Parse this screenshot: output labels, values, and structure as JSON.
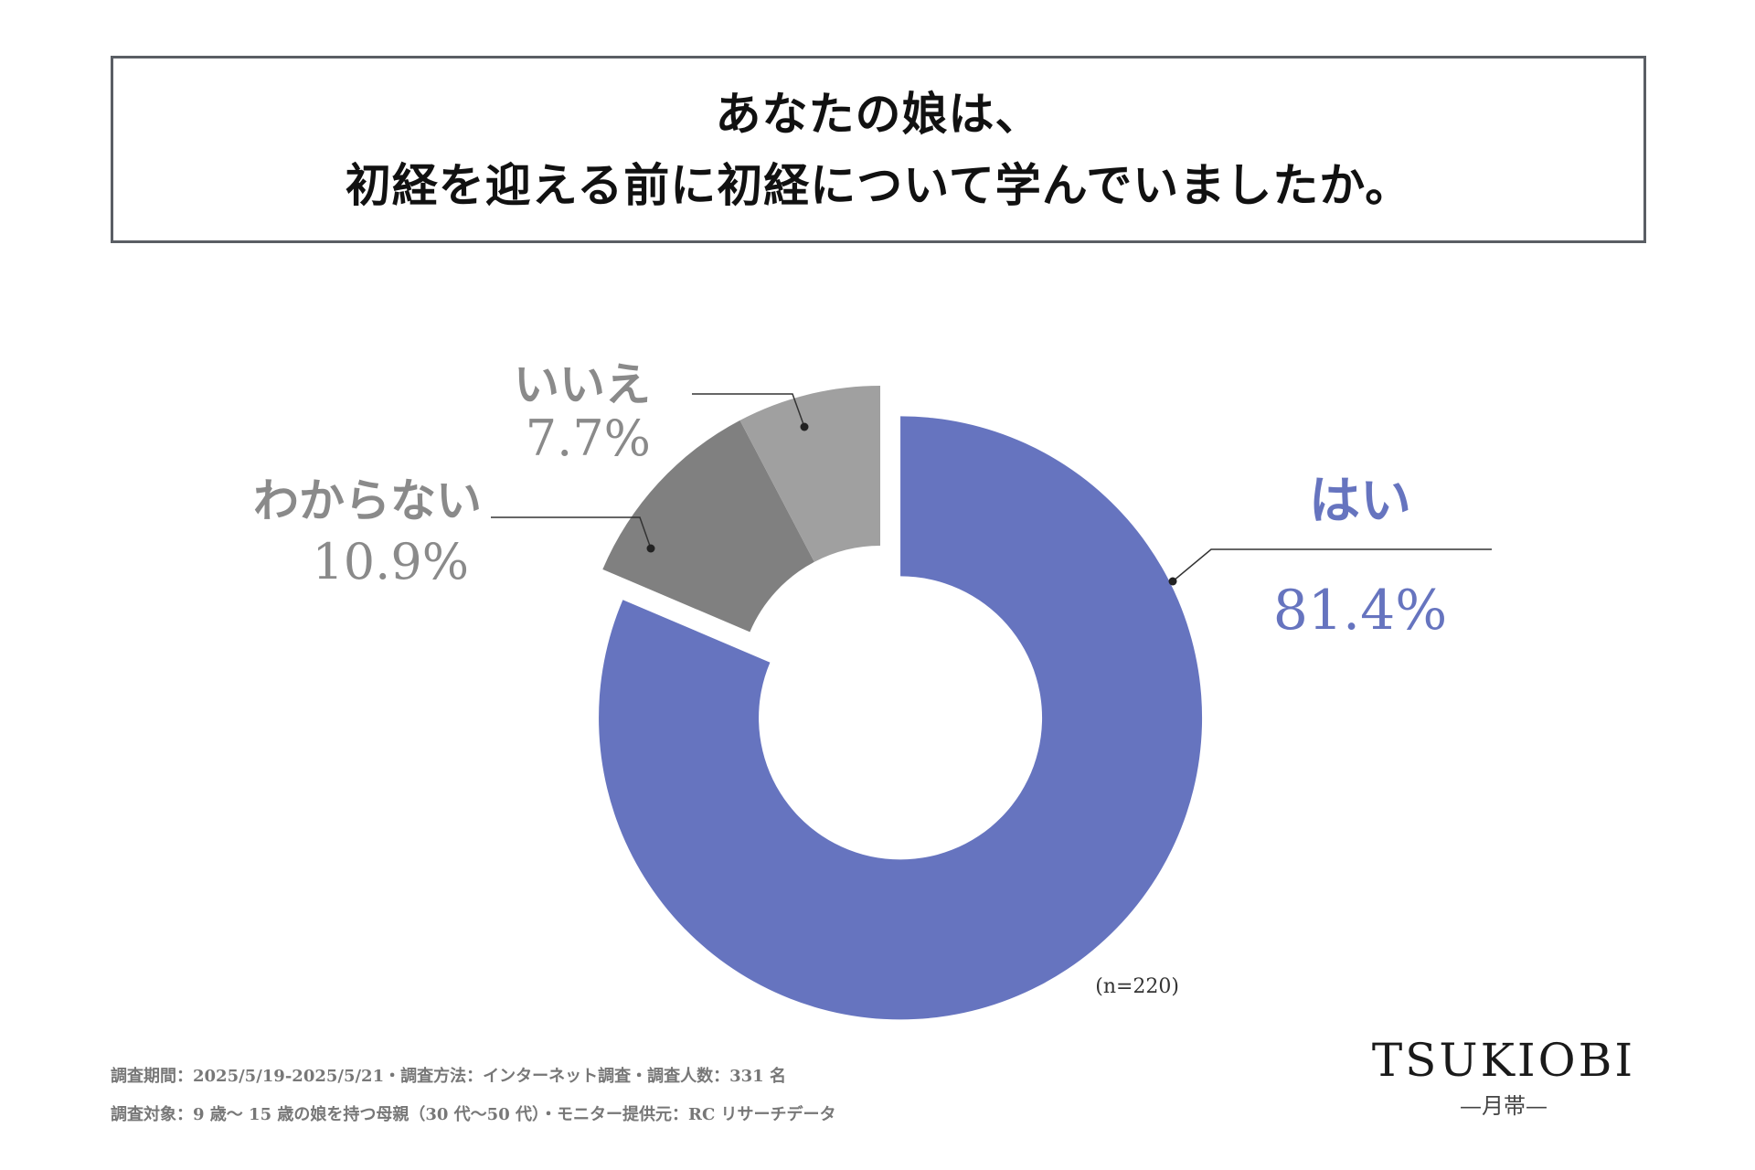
{
  "title": {
    "line1": "あなたの娘は、",
    "line2": "初経を迎える前に初経について学んでいましたか。"
  },
  "chart_data": {
    "type": "pie",
    "variant": "donut",
    "title": "あなたの娘は、初経を迎える前に初経について学んでいましたか。",
    "slices": [
      {
        "key": "yes",
        "label": "はい",
        "value": 81.4,
        "value_label": "81.4%",
        "color": "#6674bf"
      },
      {
        "key": "dontknow",
        "label": "わからない",
        "value": 10.9,
        "value_label": "10.9%",
        "color": "#808080"
      },
      {
        "key": "no",
        "label": "いいえ",
        "value": 7.7,
        "value_label": "7.7%",
        "color": "#a0a0a0"
      }
    ],
    "sample_note": "(n=220)",
    "label_colors": {
      "yes": "#6674bf",
      "other": "#8a8a8a"
    }
  },
  "footer": {
    "line1": "調査期間：2025/5/19-2025/5/21・調査方法：インターネット調査・調査人数：331 名",
    "line2": "調査対象：9 歳〜 15 歳の娘を持つ母親（30 代〜50 代）・モニター提供元：RC リサーチデータ"
  },
  "brand": {
    "name": "TSUKIOBI",
    "sub": "—月帯—"
  }
}
